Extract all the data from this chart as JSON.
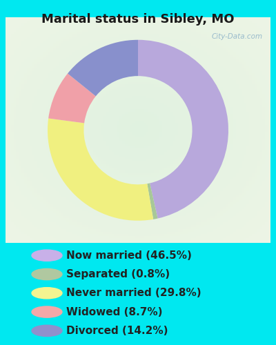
{
  "title": "Marital status in Sibley, MO",
  "title_fontsize": 13,
  "title_fontweight": "bold",
  "bg_cyan": "#00e8f0",
  "bg_chart_color1": "#e8f5ec",
  "bg_chart_color2": "#ffffff",
  "watermark": "City-Data.com",
  "slices": [
    46.5,
    0.8,
    29.8,
    8.7,
    14.2
  ],
  "labels": [
    "Now married (46.5%)",
    "Separated (0.8%)",
    "Never married (29.8%)",
    "Widowed (8.7%)",
    "Divorced (14.2%)"
  ],
  "colors": [
    "#b8a8dc",
    "#a8c898",
    "#f0f080",
    "#f0a0a8",
    "#8890cc"
  ],
  "startangle": 90,
  "legend_marker_colors": [
    "#c8b0e8",
    "#b0c8a0",
    "#f4f490",
    "#f4a8a8",
    "#9090cc"
  ],
  "legend_fontsize": 11,
  "legend_text_color": "#222222"
}
